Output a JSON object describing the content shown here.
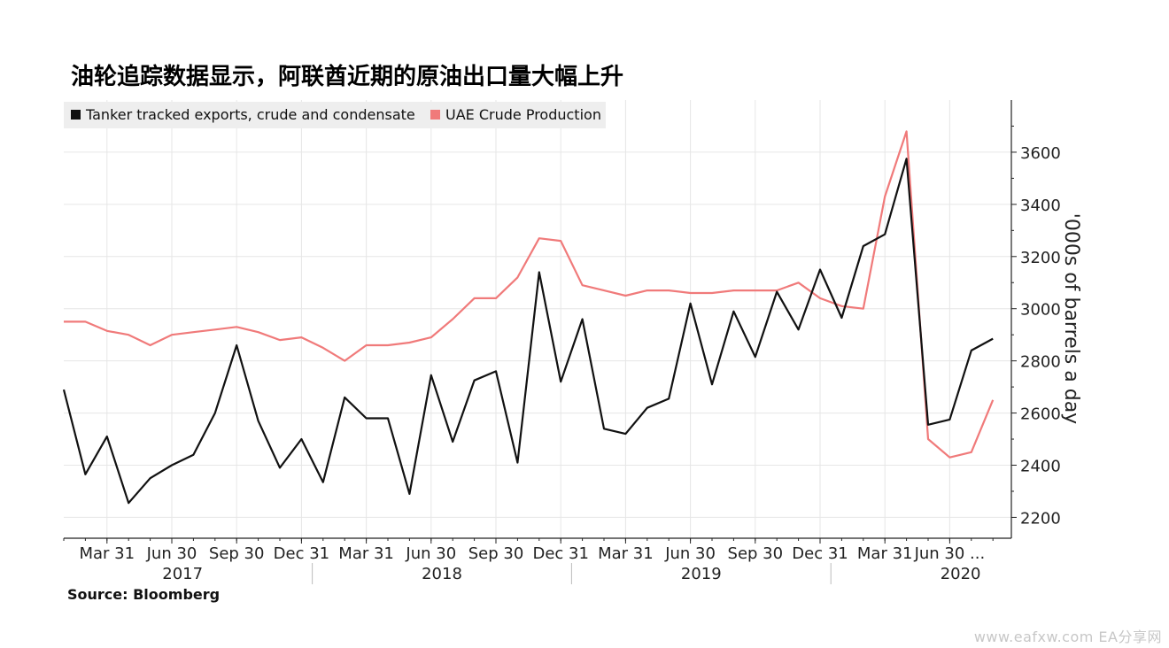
{
  "title": "油轮追踪数据显示，阿联酋近期的原油出口量大幅上升",
  "source": "Source: Bloomberg",
  "watermark": "www.eafxw.com   EA分享网",
  "chart_data": {
    "type": "line",
    "title": "油轮追踪数据显示，阿联酋近期的原油出口量大幅上升",
    "ylabel": "'000s of barrels a day",
    "ylim": [
      2120,
      3800
    ],
    "yticks": [
      2200,
      2400,
      2600,
      2800,
      3000,
      3200,
      3400,
      3600
    ],
    "grid": true,
    "legend_position": "top-left",
    "x_tick_labels": [
      "Mar 31",
      "Jun 30",
      "Sep 30",
      "Dec 31",
      "Mar 31",
      "Jun 30",
      "Sep 30",
      "Dec 31",
      "Mar 31",
      "Jun 30",
      "Sep 30",
      "Dec 31",
      "Mar 31",
      "Jun 30 ..."
    ],
    "year_labels": [
      "2017",
      "2018",
      "2019",
      "2020"
    ],
    "x_start": "2017-01",
    "x_step": "month",
    "series": [
      {
        "name": "Tanker tracked exports, crude and condensate",
        "color": "#111111",
        "values": [
          2690,
          2365,
          2510,
          2255,
          2350,
          2400,
          2440,
          2600,
          2860,
          2570,
          2390,
          2500,
          2335,
          2660,
          2580,
          2580,
          2290,
          2745,
          2490,
          2725,
          2760,
          2410,
          3140,
          2720,
          2960,
          2540,
          2520,
          2620,
          2655,
          3020,
          2710,
          2990,
          2815,
          3065,
          2920,
          3150,
          2965,
          3240,
          3285,
          3575,
          2555,
          2575,
          2840,
          2885
        ]
      },
      {
        "name": "UAE Crude Production",
        "color": "#f07a7a",
        "values": [
          2950,
          2950,
          2915,
          2900,
          2860,
          2900,
          2910,
          2920,
          2930,
          2910,
          2880,
          2890,
          2850,
          2800,
          2860,
          2860,
          2870,
          2890,
          2960,
          3040,
          3040,
          3120,
          3270,
          3260,
          3090,
          3070,
          3050,
          3070,
          3070,
          3060,
          3060,
          3070,
          3070,
          3070,
          3100,
          3040,
          3010,
          3000,
          3430,
          3680,
          2500,
          2430,
          2450,
          2650
        ]
      }
    ]
  }
}
